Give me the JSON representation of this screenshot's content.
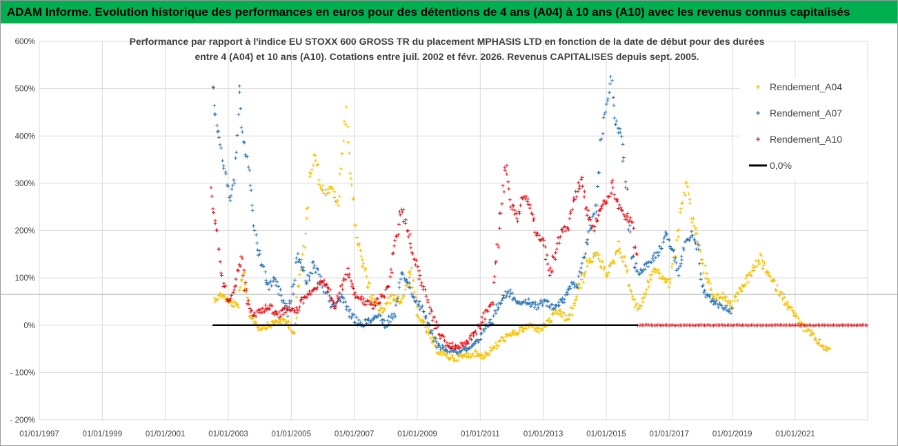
{
  "banner": "ADAM Informe. Evolution historique des performances en euros pour des détentions de 4 ans (A04) à 10 ans (A10) avec les revenus connus capitalisés",
  "chart_data": {
    "type": "scatter",
    "title_lines": [
      "Performance par rapport à l'indice EU STOXX 600 GROSS TR  du placement MPHASIS LTD en fonction de la date de début pour des durées",
      "entre 4 (A04) et 10 ans (A10). Cotations entre juil. 2002 et févr. 2026. Revenus CAPITALISES depuis sept. 2005."
    ],
    "x_range": [
      1997.0,
      2023.3
    ],
    "ylim": [
      -200,
      600
    ],
    "y_ticks": [
      600,
      500,
      400,
      300,
      200,
      100,
      0,
      -100,
      -200
    ],
    "y_tick_labels": [
      "600%",
      "500%",
      "400%",
      "300%",
      "200%",
      "100%",
      "0%",
      "- 100%",
      "- 200%"
    ],
    "x_ticks": [
      1997,
      1999,
      2001,
      2003,
      2005,
      2007,
      2009,
      2011,
      2013,
      2015,
      2017,
      2019,
      2021
    ],
    "x_tick_labels": [
      "01/01/1997",
      "01/01/1999",
      "01/01/2001",
      "01/01/2003",
      "01/01/2005",
      "01/01/2007",
      "01/01/2009",
      "01/01/2011",
      "01/01/2013",
      "01/01/2015",
      "01/01/2017",
      "01/01/2019",
      "01/01/2021"
    ],
    "reference_line_y": 65,
    "series": [
      {
        "name": "Rendement_A04",
        "color": "#f5c000",
        "x": [
          2002.55,
          2002.8,
          2003.0,
          2003.3,
          2003.5,
          2003.7,
          2004.0,
          2004.3,
          2004.6,
          2004.9,
          2005.1,
          2005.3,
          2005.45,
          2005.6,
          2005.75,
          2005.9,
          2006.1,
          2006.3,
          2006.5,
          2006.6,
          2006.75,
          2006.9,
          2007.1,
          2007.3,
          2007.6,
          2007.9,
          2008.2,
          2008.5,
          2008.8,
          2009.0,
          2009.3,
          2009.6,
          2009.9,
          2010.2,
          2010.5,
          2010.8,
          2011.1,
          2011.4,
          2011.7,
          2012.0,
          2012.3,
          2012.6,
          2012.9,
          2013.2,
          2013.5,
          2013.8,
          2014.1,
          2014.4,
          2014.7,
          2015.0,
          2015.2,
          2015.4,
          2015.6,
          2015.8,
          2016.0,
          2016.2,
          2016.5,
          2016.8,
          2017.0,
          2017.2,
          2017.4,
          2017.55,
          2017.7,
          2017.9,
          2018.1,
          2018.4,
          2018.7,
          2019.0,
          2019.3,
          2019.6,
          2019.9,
          2020.2,
          2020.5,
          2020.8,
          2021.0,
          2021.2,
          2021.5,
          2021.8,
          2022.1
        ],
        "y": [
          55,
          65,
          50,
          40,
          110,
          20,
          -5,
          0,
          10,
          5,
          -15,
          120,
          190,
          320,
          370,
          300,
          280,
          290,
          250,
          360,
          460,
          300,
          180,
          120,
          50,
          30,
          60,
          50,
          120,
          20,
          -10,
          -50,
          -65,
          -70,
          -65,
          -60,
          -65,
          -50,
          -30,
          -20,
          -10,
          0,
          -10,
          10,
          30,
          10,
          70,
          130,
          150,
          110,
          130,
          170,
          130,
          70,
          30,
          60,
          120,
          100,
          90,
          160,
          250,
          310,
          230,
          180,
          120,
          60,
          60,
          40,
          80,
          110,
          140,
          100,
          70,
          40,
          20,
          0,
          -20,
          -40,
          -55
        ]
      },
      {
        "name": "Rendement_A07",
        "color": "#2e75b6",
        "x": [
          2002.5,
          2002.6,
          2002.75,
          2002.9,
          2003.05,
          2003.2,
          2003.35,
          2003.45,
          2003.6,
          2003.75,
          2003.9,
          2004.1,
          2004.3,
          2004.5,
          2004.7,
          2004.9,
          2005.05,
          2005.2,
          2005.35,
          2005.5,
          2005.7,
          2005.9,
          2006.1,
          2006.3,
          2006.6,
          2006.9,
          2007.2,
          2007.5,
          2007.8,
          2008.0,
          2008.3,
          2008.5,
          2008.7,
          2008.9,
          2009.1,
          2009.3,
          2009.6,
          2009.9,
          2010.2,
          2010.5,
          2010.8,
          2011.0,
          2011.2,
          2011.4,
          2011.6,
          2011.9,
          2012.2,
          2012.5,
          2012.8,
          2013.0,
          2013.3,
          2013.6,
          2013.9,
          2014.1,
          2014.3,
          2014.5,
          2014.7,
          2014.85,
          2015.0,
          2015.15,
          2015.3,
          2015.45,
          2015.6,
          2015.8,
          2016.0,
          2016.3,
          2016.6,
          2016.9,
          2017.1,
          2017.3,
          2017.5,
          2017.7,
          2017.9,
          2018.1,
          2018.4,
          2018.7,
          2019.0
        ],
        "y": [
          505,
          440,
          380,
          320,
          270,
          310,
          500,
          400,
          350,
          250,
          170,
          120,
          80,
          100,
          50,
          30,
          80,
          150,
          120,
          90,
          130,
          100,
          70,
          40,
          60,
          20,
          0,
          10,
          20,
          0,
          30,
          110,
          90,
          60,
          40,
          10,
          -40,
          -50,
          -55,
          -50,
          -45,
          -30,
          0,
          10,
          50,
          70,
          50,
          50,
          40,
          50,
          40,
          50,
          90,
          80,
          150,
          200,
          260,
          400,
          470,
          520,
          430,
          400,
          330,
          150,
          110,
          130,
          150,
          190,
          160,
          110,
          170,
          190,
          160,
          70,
          50,
          40,
          30
        ]
      },
      {
        "name": "Rendement_A10",
        "color": "#e8141b",
        "x": [
          2002.45,
          2002.6,
          2002.8,
          2003.0,
          2003.2,
          2003.4,
          2003.6,
          2003.8,
          2004.0,
          2004.3,
          2004.6,
          2004.9,
          2005.2,
          2005.4,
          2005.6,
          2005.8,
          2006.0,
          2006.2,
          2006.4,
          2006.6,
          2006.8,
          2007.0,
          2007.3,
          2007.6,
          2007.9,
          2008.1,
          2008.3,
          2008.5,
          2008.7,
          2008.9,
          2009.1,
          2009.3,
          2009.6,
          2009.9,
          2010.2,
          2010.5,
          2010.8,
          2011.0,
          2011.2,
          2011.4,
          2011.6,
          2011.8,
          2012.0,
          2012.2,
          2012.4,
          2012.6,
          2012.8,
          2013.0,
          2013.2,
          2013.4,
          2013.6,
          2013.8,
          2014.0,
          2014.2,
          2014.4,
          2014.6,
          2014.8,
          2015.0,
          2015.2,
          2015.4,
          2015.6,
          2015.8,
          2016.0
        ],
        "y": [
          280,
          220,
          100,
          50,
          80,
          140,
          50,
          20,
          30,
          40,
          20,
          40,
          30,
          60,
          70,
          80,
          90,
          70,
          40,
          80,
          120,
          70,
          50,
          40,
          60,
          90,
          170,
          250,
          200,
          150,
          100,
          50,
          0,
          -40,
          -45,
          -40,
          -20,
          0,
          30,
          60,
          200,
          340,
          250,
          230,
          280,
          250,
          190,
          180,
          100,
          160,
          200,
          210,
          270,
          310,
          240,
          200,
          250,
          260,
          300,
          250,
          230,
          220,
          120
        ]
      },
      {
        "name": "Rendement_A10",
        "color": "#e8141b",
        "x_range": [
          2016.0,
          2023.3
        ],
        "constant_y": 0
      }
    ],
    "zero_line": {
      "name": "0,0%",
      "color": "#000000",
      "y": 0,
      "x_range": [
        2002.5,
        2016.0
      ]
    },
    "legend": [
      {
        "label": "Rendement_A04",
        "color": "#f5c000",
        "marker": "plus"
      },
      {
        "label": "Rendement_A07",
        "color": "#2e75b6",
        "marker": "plus"
      },
      {
        "label": "Rendement_A10",
        "color": "#e8141b",
        "marker": "plus"
      },
      {
        "label": "0,0%",
        "color": "#000000",
        "marker": "line"
      }
    ],
    "legend_position": "top-right"
  }
}
